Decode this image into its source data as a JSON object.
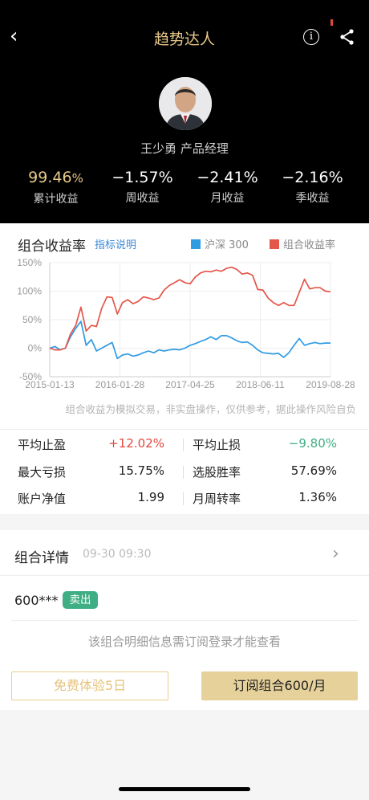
{
  "header": {
    "title": "趋势达人",
    "back_icon": "back-arrow-icon",
    "info_icon": "info-icon",
    "share_icon": "share-icon"
  },
  "profile": {
    "manager": "王少勇 产品经理"
  },
  "stats": [
    {
      "value": "99.46",
      "unit": "%",
      "label": "累计收益"
    },
    {
      "value": "−1.57%",
      "label": "周收益"
    },
    {
      "value": "−2.41%",
      "label": "月收益"
    },
    {
      "value": "−2.16%",
      "label": "季收益"
    }
  ],
  "chart_section": {
    "title": "组合收益率",
    "help": "指标说明",
    "note": "组合收益为模拟交易，非实盘操作，仅供参考，据此操作风险自负"
  },
  "chart_data": {
    "type": "line",
    "x_ticks": [
      "2015-01-13",
      "2016-01-28",
      "2017-04-25",
      "2018-06-11",
      "2019-08-28"
    ],
    "y_ticks": [
      "150%",
      "100%",
      "50%",
      "0%",
      "-50%"
    ],
    "ylim": [
      -50,
      150
    ],
    "grid": true,
    "legend_position": "top-right",
    "series": [
      {
        "name": "沪深 300",
        "color": "#2f9be3",
        "values": [
          0,
          3,
          -3,
          0,
          20,
          35,
          47,
          5,
          15,
          -5,
          0,
          5,
          10,
          -18,
          -12,
          -10,
          -14,
          -12,
          -8,
          -5,
          -8,
          -3,
          -5,
          -3,
          -2,
          -3,
          0,
          5,
          8,
          12,
          15,
          20,
          15,
          22,
          22,
          18,
          13,
          10,
          11,
          5,
          -3,
          -8,
          -9,
          -10,
          -9,
          -16,
          -8,
          5,
          17,
          5,
          8,
          10,
          8,
          9,
          9
        ]
      },
      {
        "name": "组合收益率",
        "color": "#e5564a",
        "values": [
          0,
          -3,
          -3,
          0,
          25,
          40,
          72,
          30,
          40,
          38,
          70,
          90,
          89,
          60,
          80,
          85,
          78,
          82,
          90,
          88,
          85,
          88,
          102,
          110,
          115,
          120,
          115,
          113,
          125,
          132,
          135,
          134,
          137,
          135,
          140,
          142,
          138,
          130,
          132,
          128,
          103,
          102,
          88,
          80,
          75,
          80,
          75,
          75,
          98,
          121,
          104,
          106,
          106,
          100,
          99
        ]
      }
    ]
  },
  "metrics": {
    "rows": [
      {
        "l1": "平均止盈",
        "v1": "+12.02%",
        "l2": "平均止损",
        "v2": "−9.80%"
      },
      {
        "l1": "最大亏损",
        "v1": "15.75%",
        "l2": "选股胜率",
        "v2": "57.69%"
      },
      {
        "l1": "账户净值",
        "v1": "1.99",
        "l2": "月周转率",
        "v2": "1.36%"
      }
    ],
    "positive_color": "#e0483e",
    "negative_color": "#3fae84"
  },
  "detail": {
    "title": "组合详情",
    "time": "09-30 09:30",
    "stock": "600***",
    "action": "卖出",
    "locked_text": "该组合明细信息需订阅登录才能查看",
    "free_trial": "免费体验5日",
    "subscribe": "订阅组合600/月"
  }
}
